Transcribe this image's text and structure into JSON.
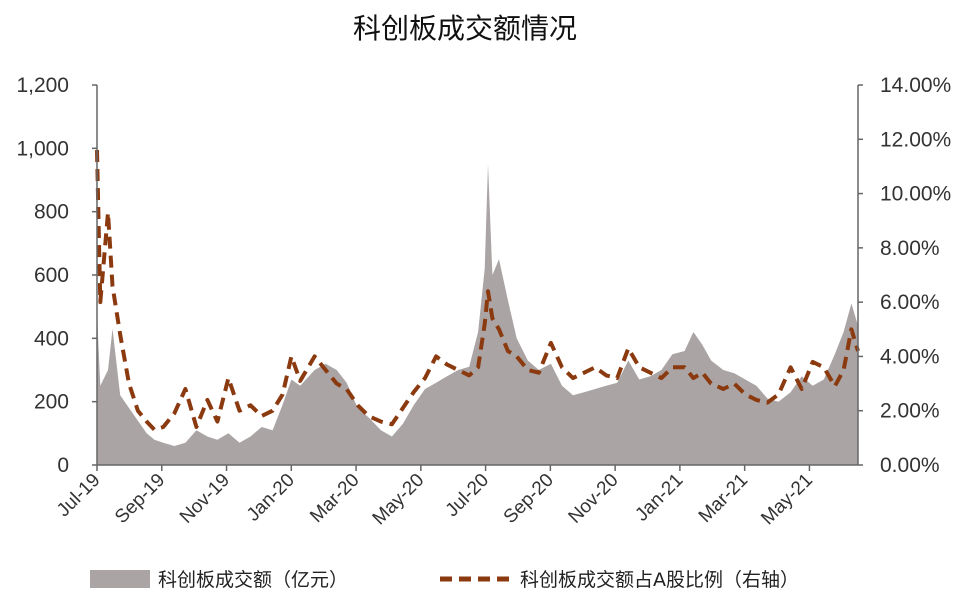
{
  "chart_data": {
    "type": "area+line",
    "title": "科创板成交额情况",
    "xlabel": "",
    "ylabel_left": "",
    "ylabel_right": "",
    "x_ticks": [
      "Jul-19",
      "Sep-19",
      "Nov-19",
      "Jan-20",
      "Mar-20",
      "May-20",
      "Jul-20",
      "Sep-20",
      "Nov-20",
      "Jan-21",
      "Mar-21",
      "May-21"
    ],
    "y_left_ticks": [
      "0",
      "200",
      "400",
      "600",
      "800",
      "1,000",
      "1,200"
    ],
    "y_right_ticks": [
      "0.00%",
      "2.00%",
      "4.00%",
      "6.00%",
      "8.00%",
      "10.00%",
      "12.00%",
      "14.00%"
    ],
    "y_left_range": [
      0,
      1200
    ],
    "y_right_range": [
      0,
      14
    ],
    "grid": false,
    "legend_position": "bottom",
    "series": [
      {
        "name": "科创板成交额（亿元）",
        "kind": "area",
        "axis": "left",
        "color": "#aaa4a4",
        "points": [
          [
            "2019-07-22",
            480
          ],
          [
            "2019-07-25",
            250
          ],
          [
            "2019-08-01",
            300
          ],
          [
            "2019-08-05",
            430
          ],
          [
            "2019-08-12",
            220
          ],
          [
            "2019-08-20",
            180
          ],
          [
            "2019-08-28",
            140
          ],
          [
            "2019-09-05",
            100
          ],
          [
            "2019-09-12",
            80
          ],
          [
            "2019-09-20",
            70
          ],
          [
            "2019-09-30",
            60
          ],
          [
            "2019-10-10",
            70
          ],
          [
            "2019-10-20",
            110
          ],
          [
            "2019-10-30",
            90
          ],
          [
            "2019-11-08",
            80
          ],
          [
            "2019-11-18",
            100
          ],
          [
            "2019-11-28",
            70
          ],
          [
            "2019-12-08",
            90
          ],
          [
            "2019-12-18",
            120
          ],
          [
            "2019-12-28",
            110
          ],
          [
            "2020-01-06",
            190
          ],
          [
            "2020-01-14",
            270
          ],
          [
            "2020-01-22",
            250
          ],
          [
            "2020-02-04",
            300
          ],
          [
            "2020-02-14",
            320
          ],
          [
            "2020-02-24",
            300
          ],
          [
            "2020-03-04",
            260
          ],
          [
            "2020-03-14",
            180
          ],
          [
            "2020-03-24",
            150
          ],
          [
            "2020-04-04",
            110
          ],
          [
            "2020-04-14",
            90
          ],
          [
            "2020-04-24",
            130
          ],
          [
            "2020-05-04",
            190
          ],
          [
            "2020-05-14",
            240
          ],
          [
            "2020-05-24",
            260
          ],
          [
            "2020-06-03",
            280
          ],
          [
            "2020-06-13",
            300
          ],
          [
            "2020-06-23",
            310
          ],
          [
            "2020-07-01",
            420
          ],
          [
            "2020-07-07",
            620
          ],
          [
            "2020-07-10",
            950
          ],
          [
            "2020-07-14",
            600
          ],
          [
            "2020-07-20",
            650
          ],
          [
            "2020-07-28",
            520
          ],
          [
            "2020-08-05",
            400
          ],
          [
            "2020-08-15",
            330
          ],
          [
            "2020-08-25",
            300
          ],
          [
            "2020-09-05",
            320
          ],
          [
            "2020-09-15",
            250
          ],
          [
            "2020-09-25",
            220
          ],
          [
            "2020-10-05",
            230
          ],
          [
            "2020-10-15",
            240
          ],
          [
            "2020-10-25",
            250
          ],
          [
            "2020-11-04",
            260
          ],
          [
            "2020-11-14",
            330
          ],
          [
            "2020-11-24",
            270
          ],
          [
            "2020-12-04",
            280
          ],
          [
            "2020-12-14",
            300
          ],
          [
            "2020-12-24",
            350
          ],
          [
            "2021-01-04",
            360
          ],
          [
            "2021-01-12",
            420
          ],
          [
            "2021-01-20",
            380
          ],
          [
            "2021-01-28",
            330
          ],
          [
            "2021-02-08",
            300
          ],
          [
            "2021-02-18",
            290
          ],
          [
            "2021-02-28",
            270
          ],
          [
            "2021-03-10",
            250
          ],
          [
            "2021-03-20",
            210
          ],
          [
            "2021-03-30",
            200
          ],
          [
            "2021-04-10",
            230
          ],
          [
            "2021-04-20",
            280
          ],
          [
            "2021-04-30",
            250
          ],
          [
            "2021-05-10",
            270
          ],
          [
            "2021-05-20",
            350
          ],
          [
            "2021-05-28",
            420
          ],
          [
            "2021-06-04",
            510
          ],
          [
            "2021-06-10",
            440
          ]
        ]
      },
      {
        "name": "科创板成交额占A股比例（右轴）",
        "kind": "line",
        "axis": "right",
        "color": "#8b3a0f",
        "points": [
          [
            "2019-07-22",
            11.6
          ],
          [
            "2019-07-25",
            6.0
          ],
          [
            "2019-08-01",
            9.3
          ],
          [
            "2019-08-05",
            6.6
          ],
          [
            "2019-08-12",
            4.8
          ],
          [
            "2019-08-20",
            3.0
          ],
          [
            "2019-08-28",
            2.0
          ],
          [
            "2019-09-05",
            1.6
          ],
          [
            "2019-09-12",
            1.3
          ],
          [
            "2019-09-20",
            1.4
          ],
          [
            "2019-09-30",
            1.9
          ],
          [
            "2019-10-10",
            2.8
          ],
          [
            "2019-10-20",
            1.4
          ],
          [
            "2019-10-30",
            2.4
          ],
          [
            "2019-11-08",
            1.6
          ],
          [
            "2019-11-18",
            3.2
          ],
          [
            "2019-11-28",
            2.0
          ],
          [
            "2019-12-08",
            2.2
          ],
          [
            "2019-12-18",
            1.8
          ],
          [
            "2019-12-28",
            2.0
          ],
          [
            "2020-01-06",
            2.6
          ],
          [
            "2020-01-14",
            4.0
          ],
          [
            "2020-01-22",
            3.1
          ],
          [
            "2020-02-04",
            4.0
          ],
          [
            "2020-02-14",
            3.5
          ],
          [
            "2020-02-24",
            3.0
          ],
          [
            "2020-03-04",
            2.8
          ],
          [
            "2020-03-14",
            2.2
          ],
          [
            "2020-03-24",
            1.8
          ],
          [
            "2020-04-04",
            1.6
          ],
          [
            "2020-04-14",
            1.5
          ],
          [
            "2020-04-24",
            2.1
          ],
          [
            "2020-05-04",
            2.7
          ],
          [
            "2020-05-14",
            3.2
          ],
          [
            "2020-05-24",
            4.0
          ],
          [
            "2020-06-03",
            3.7
          ],
          [
            "2020-06-13",
            3.5
          ],
          [
            "2020-06-23",
            3.3
          ],
          [
            "2020-07-01",
            3.6
          ],
          [
            "2020-07-07",
            5.2
          ],
          [
            "2020-07-10",
            6.4
          ],
          [
            "2020-07-14",
            5.4
          ],
          [
            "2020-07-20",
            5.0
          ],
          [
            "2020-07-28",
            4.2
          ],
          [
            "2020-08-05",
            4.0
          ],
          [
            "2020-08-15",
            3.5
          ],
          [
            "2020-08-25",
            3.4
          ],
          [
            "2020-09-05",
            4.5
          ],
          [
            "2020-09-15",
            3.6
          ],
          [
            "2020-09-25",
            3.2
          ],
          [
            "2020-10-05",
            3.4
          ],
          [
            "2020-10-15",
            3.6
          ],
          [
            "2020-10-25",
            3.3
          ],
          [
            "2020-11-04",
            3.2
          ],
          [
            "2020-11-14",
            4.3
          ],
          [
            "2020-11-24",
            3.6
          ],
          [
            "2020-12-04",
            3.4
          ],
          [
            "2020-12-14",
            3.2
          ],
          [
            "2020-12-24",
            3.6
          ],
          [
            "2021-01-04",
            3.6
          ],
          [
            "2021-01-12",
            3.2
          ],
          [
            "2021-01-20",
            3.4
          ],
          [
            "2021-01-28",
            3.0
          ],
          [
            "2021-02-08",
            2.8
          ],
          [
            "2021-02-18",
            3.0
          ],
          [
            "2021-02-28",
            2.6
          ],
          [
            "2021-03-10",
            2.4
          ],
          [
            "2021-03-20",
            2.3
          ],
          [
            "2021-03-30",
            2.6
          ],
          [
            "2021-04-10",
            3.6
          ],
          [
            "2021-04-20",
            2.8
          ],
          [
            "2021-04-30",
            3.8
          ],
          [
            "2021-05-10",
            3.6
          ],
          [
            "2021-05-20",
            2.9
          ],
          [
            "2021-05-28",
            3.5
          ],
          [
            "2021-06-04",
            5.0
          ],
          [
            "2021-06-10",
            4.2
          ]
        ]
      }
    ]
  }
}
